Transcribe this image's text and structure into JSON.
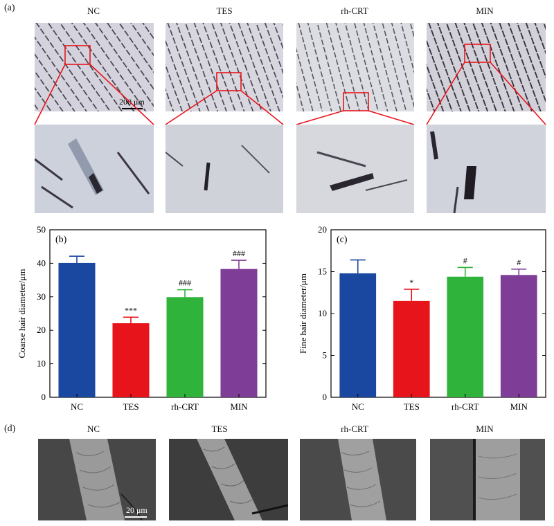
{
  "panel_a": {
    "letter": "(a)",
    "groups": [
      "NC",
      "TES",
      "rh-CRT",
      "MIN"
    ],
    "scale_bar": "200 μm"
  },
  "panel_d": {
    "letter": "(d)",
    "groups": [
      "NC",
      "TES",
      "rh-CRT",
      "MIN"
    ],
    "scale_bar": "20 μm"
  },
  "colors": {
    "NC": "#1a47a0",
    "TES": "#e8141b",
    "rh-CRT": "#2fb33a",
    "MIN": "#7e3d96",
    "callout": "#e8141b"
  },
  "chart_data": [
    {
      "type": "bar",
      "panel": "(b)",
      "categories": [
        "NC",
        "TES",
        "rh-CRT",
        "MIN"
      ],
      "values": [
        40.1,
        22.1,
        29.9,
        38.3
      ],
      "errors": [
        2.0,
        1.8,
        2.2,
        2.6
      ],
      "annotations": [
        "",
        "***",
        "###",
        "###"
      ],
      "ylabel": "Coarse hair diameter/μm",
      "xlabel": "",
      "ylim": [
        0,
        50
      ],
      "yticks": [
        0,
        10,
        20,
        30,
        40,
        50
      ]
    },
    {
      "type": "bar",
      "panel": "(c)",
      "categories": [
        "NC",
        "TES",
        "rh-CRT",
        "MIN"
      ],
      "values": [
        14.8,
        11.5,
        14.4,
        14.6
      ],
      "errors": [
        1.6,
        1.4,
        1.1,
        0.7
      ],
      "annotations": [
        "",
        "*",
        "#",
        "#"
      ],
      "ylabel": "Fine hair diameter/μm",
      "xlabel": "",
      "ylim": [
        0,
        20
      ],
      "yticks": [
        0,
        5,
        10,
        15,
        20
      ]
    }
  ]
}
